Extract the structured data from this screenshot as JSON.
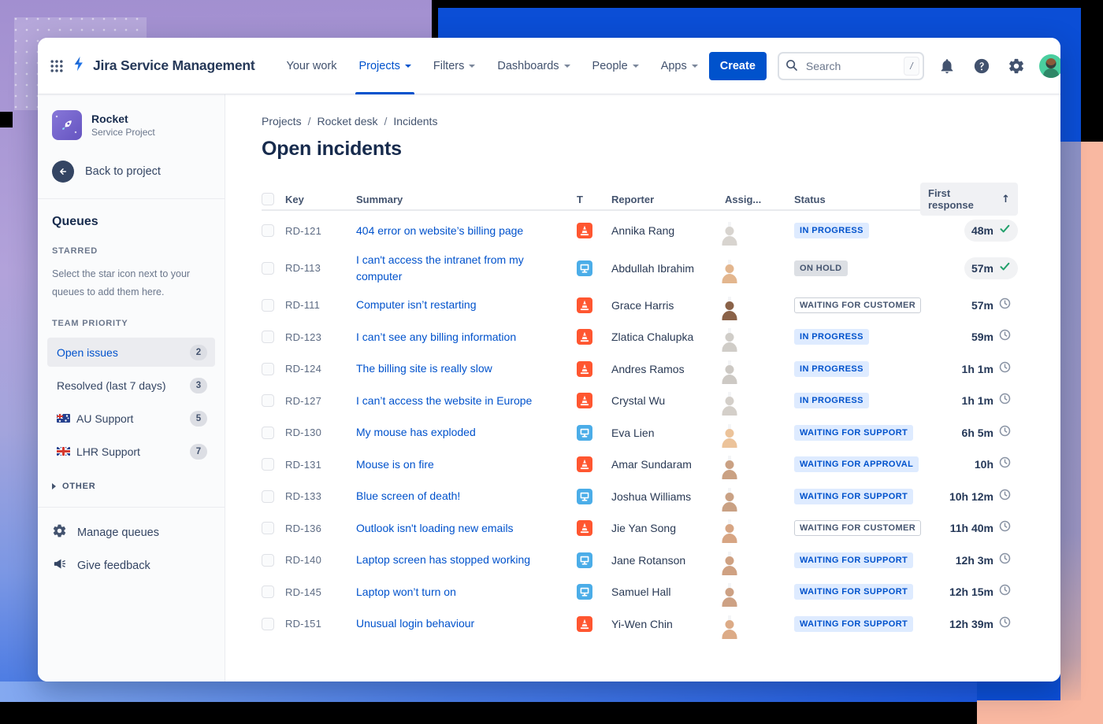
{
  "colors": {
    "accent_blue": "#0052CC",
    "badge_blue_bg": "#DEEBFF",
    "badge_gray_bg": "#DCDFE4",
    "badge_text_dark": "#44546F",
    "done_green": "#22A06B",
    "incident_red": "#FF5630",
    "request_blue": "#4BADE8",
    "bg_purple": "#A28FD0",
    "bg_blue": "#0B4ED6",
    "bg_salmon": "#F9B8A1"
  },
  "nav": {
    "brand": "Jira Service Management",
    "items": [
      {
        "label": "Your work",
        "caret": false,
        "active": false
      },
      {
        "label": "Projects",
        "caret": true,
        "active": true
      },
      {
        "label": "Filters",
        "caret": true,
        "active": false
      },
      {
        "label": "Dashboards",
        "caret": true,
        "active": false
      },
      {
        "label": "People",
        "caret": true,
        "active": false
      },
      {
        "label": "Apps",
        "caret": true,
        "active": false
      }
    ],
    "create_label": "Create",
    "search_placeholder": "Search",
    "search_shortcut": "/"
  },
  "sidebar": {
    "project_name": "Rocket",
    "project_type": "Service Project",
    "back_label": "Back to project",
    "queues_title": "Queues",
    "starred_title": "STARRED",
    "starred_hint": "Select the star icon next to your queues to add them here.",
    "team_priority_title": "TEAM PRIORITY",
    "items": [
      {
        "label": "Open issues",
        "count": "2",
        "flag": "",
        "selected": true
      },
      {
        "label": "Resolved (last 7 days)",
        "count": "3",
        "flag": "",
        "selected": false
      },
      {
        "label": "AU Support",
        "count": "5",
        "flag": "au",
        "selected": false
      },
      {
        "label": "LHR Support",
        "count": "7",
        "flag": "gb",
        "selected": false
      }
    ],
    "other_label": "OTHER",
    "manage_label": "Manage queues",
    "feedback_label": "Give feedback"
  },
  "main": {
    "breadcrumb": [
      "Projects",
      "Rocket desk",
      "Incidents"
    ],
    "breadcrumb_separator": "/",
    "title": "Open incidents",
    "columns": {
      "key": "Key",
      "summary": "Summary",
      "type": "T",
      "reporter": "Reporter",
      "assignee": "Assig...",
      "status": "Status",
      "first_response": "First response"
    },
    "sort_icon": "↑"
  },
  "rows": [
    {
      "key": "RD-121",
      "summary": "404 error on website’s billing page",
      "type": "incident",
      "reporter": "Annika Rang",
      "avatar": {
        "bg": "#3c3c3c",
        "fg": "#d8d4cf"
      },
      "status": {
        "label": "IN PROGRESS",
        "style": "blue"
      },
      "response": {
        "time": "48m",
        "state": "done"
      }
    },
    {
      "key": "RD-113",
      "summary": "I can't access the intranet from my computer",
      "type": "request",
      "reporter": "Abdullah Ibrahim",
      "avatar": {
        "bg": "#6e4632",
        "fg": "#e3b68e"
      },
      "status": {
        "label": "ON HOLD",
        "style": "gray"
      },
      "response": {
        "time": "57m",
        "state": "done"
      }
    },
    {
      "key": "RD-111",
      "summary": "Computer isn’t restarting",
      "type": "incident",
      "reporter": "Grace Harris",
      "avatar": {
        "bg": "#cdbfae",
        "fg": "#8a6248"
      },
      "status": {
        "label": "WAITING FOR CUSTOMER",
        "style": "outline"
      },
      "response": {
        "time": "57m",
        "state": "pending"
      }
    },
    {
      "key": "RD-123",
      "summary": "I can’t see any billing information",
      "type": "incident",
      "reporter": "Zlatica Chalupka",
      "avatar": {
        "bg": "#474747",
        "fg": "#d0cdc8"
      },
      "status": {
        "label": "IN PROGRESS",
        "style": "blue"
      },
      "response": {
        "time": "59m",
        "state": "pending"
      }
    },
    {
      "key": "RD-124",
      "summary": "The billing site is really slow",
      "type": "incident",
      "reporter": "Andres Ramos",
      "avatar": {
        "bg": "#2f2f2f",
        "fg": "#cdc9c4"
      },
      "status": {
        "label": "IN PROGRESS",
        "style": "blue"
      },
      "response": {
        "time": "1h 1m",
        "state": "pending"
      }
    },
    {
      "key": "RD-127",
      "summary": "I can’t access the website in Europe",
      "type": "incident",
      "reporter": "Crystal Wu",
      "avatar": {
        "bg": "#3a3a3a",
        "fg": "#d4cfc9"
      },
      "status": {
        "label": "IN PROGRESS",
        "style": "blue"
      },
      "response": {
        "time": "1h 1m",
        "state": "pending"
      }
    },
    {
      "key": "RD-130",
      "summary": "My mouse has exploded",
      "type": "request",
      "reporter": "Eva Lien",
      "avatar": {
        "bg": "#a8684a",
        "fg": "#ecc39a"
      },
      "status": {
        "label": "WAITING FOR SUPPORT",
        "style": "blue"
      },
      "response": {
        "time": "6h 5m",
        "state": "pending"
      }
    },
    {
      "key": "RD-131",
      "summary": "Mouse is on fire",
      "type": "incident",
      "reporter": "Amar Sundaram",
      "avatar": {
        "bg": "#58423a",
        "fg": "#caa183"
      },
      "status": {
        "label": "WAITING FOR APPROVAL",
        "style": "blue"
      },
      "response": {
        "time": "10h",
        "state": "pending"
      }
    },
    {
      "key": "RD-133",
      "summary": "Blue screen of death!",
      "type": "request",
      "reporter": "Joshua Williams",
      "avatar": {
        "bg": "#4e3e36",
        "fg": "#c9a184"
      },
      "status": {
        "label": "WAITING FOR SUPPORT",
        "style": "blue"
      },
      "response": {
        "time": "10h 12m",
        "state": "pending"
      }
    },
    {
      "key": "RD-136",
      "summary": "Outlook isn't loading new emails",
      "type": "incident",
      "reporter": "Jie Yan Song",
      "avatar": {
        "bg": "#52382e",
        "fg": "#d7a583"
      },
      "status": {
        "label": "WAITING FOR CUSTOMER",
        "style": "outline"
      },
      "response": {
        "time": "11h 40m",
        "state": "pending"
      }
    },
    {
      "key": "RD-140",
      "summary": "Laptop screen has stopped working",
      "type": "request",
      "reporter": "Jane Rotanson",
      "avatar": {
        "bg": "#45362e",
        "fg": "#cfa182"
      },
      "status": {
        "label": "WAITING FOR SUPPORT",
        "style": "blue"
      },
      "response": {
        "time": "12h 3m",
        "state": "pending"
      }
    },
    {
      "key": "RD-145",
      "summary": "Laptop won’t turn on",
      "type": "request",
      "reporter": "Samuel Hall",
      "avatar": {
        "bg": "#4a3a32",
        "fg": "#cda184"
      },
      "status": {
        "label": "WAITING FOR SUPPORT",
        "style": "blue"
      },
      "response": {
        "time": "12h 15m",
        "state": "pending"
      }
    },
    {
      "key": "RD-151",
      "summary": "Unusual login behaviour",
      "type": "incident",
      "reporter": "Yi-Wen Chin",
      "avatar": {
        "bg": "#5c4034",
        "fg": "#dcab87"
      },
      "status": {
        "label": "WAITING FOR SUPPORT",
        "style": "blue"
      },
      "response": {
        "time": "12h 39m",
        "state": "pending"
      }
    }
  ]
}
